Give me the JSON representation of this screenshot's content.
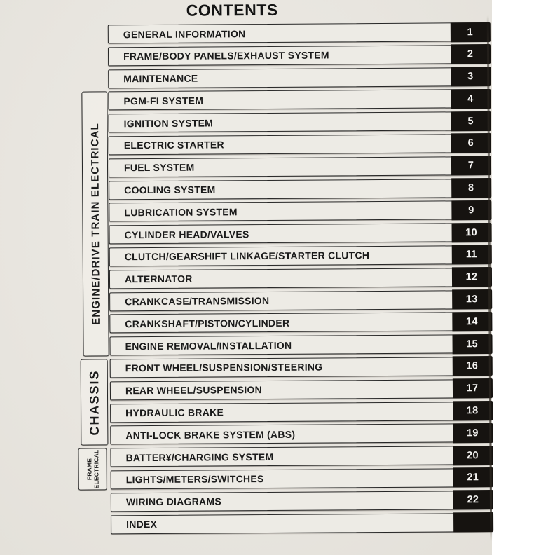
{
  "page": {
    "title": "CONTENTS"
  },
  "colors": {
    "paper": "#e8e5df",
    "row_fill": "#edebe5",
    "border_ink": "#262626",
    "badge_bg": "#161310",
    "badge_text": "#f4f3f1",
    "text_ink": "#1a1a1a"
  },
  "section_labels": [
    {
      "label": "ENGINE/DRIVE TRAIN ELECTRICAL"
    },
    {
      "label": "CHASSIS"
    },
    {
      "label": "FRAME ELECTRICAL",
      "line1": "FRAME",
      "line2": "ELECTRICAL"
    }
  ],
  "toc": {
    "items": [
      {
        "label": "GENERAL INFORMATION",
        "number": "1"
      },
      {
        "label": "FRAME/BODY PANELS/EXHAUST SYSTEM",
        "number": "2"
      },
      {
        "label": "MAINTENANCE",
        "number": "3"
      },
      {
        "label": "PGM-FI SYSTEM",
        "number": "4"
      },
      {
        "label": "IGNITION SYSTEM",
        "number": "5"
      },
      {
        "label": "ELECTRIC STARTER",
        "number": "6"
      },
      {
        "label": "FUEL SYSTEM",
        "number": "7"
      },
      {
        "label": "COOLING SYSTEM",
        "number": "8"
      },
      {
        "label": "LUBRICATION SYSTEM",
        "number": "9"
      },
      {
        "label": "CYLINDER HEAD/VALVES",
        "number": "10"
      },
      {
        "label": "CLUTCH/GEARSHIFT LINKAGE/STARTER CLUTCH",
        "number": "11"
      },
      {
        "label": "ALTERNATOR",
        "number": "12"
      },
      {
        "label": "CRANKCASE/TRANSMISSION",
        "number": "13"
      },
      {
        "label": "CRANKSHAFT/PISTON/CYLINDER",
        "number": "14"
      },
      {
        "label": "ENGINE REMOVAL/INSTALLATION",
        "number": "15"
      },
      {
        "label": "FRONT WHEEL/SUSPENSION/STEERING",
        "number": "16"
      },
      {
        "label": "REAR WHEEL/SUSPENSION",
        "number": "17"
      },
      {
        "label": "HYDRAULIC BRAKE",
        "number": "18"
      },
      {
        "label": "ANTI-LOCK BRAKE SYSTEM (ABS)",
        "number": "19"
      },
      {
        "label": "BATTER¥/CHARGING SYSTEM",
        "number": "20"
      },
      {
        "label": "LIGHTS/METERS/SWITCHES",
        "number": "21"
      },
      {
        "label": "WIRING DIAGRAMS",
        "number": "22"
      },
      {
        "label": "INDEX",
        "number": ""
      }
    ]
  }
}
